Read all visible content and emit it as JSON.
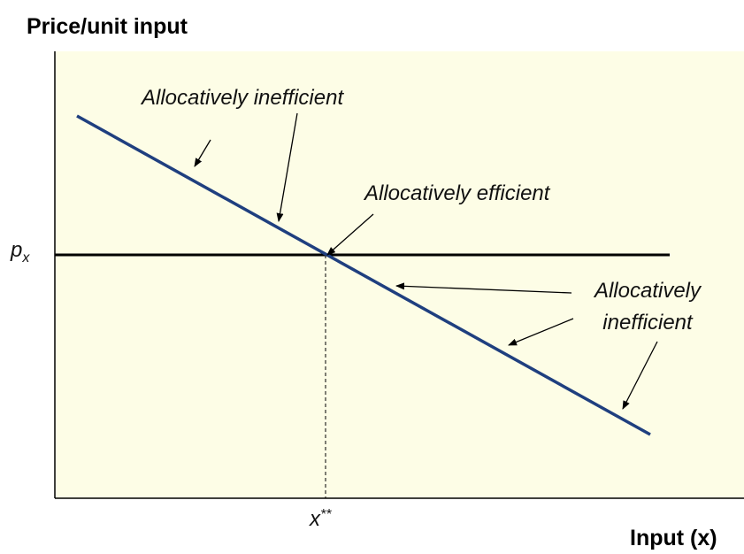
{
  "title": "Price/unit input",
  "x_axis_label": "Input (x)",
  "y_marker": {
    "label": "p",
    "subscript": "x"
  },
  "x_marker": {
    "label": "x",
    "superscript": "**"
  },
  "annotations": {
    "top_inefficient": "Allocatively inefficient",
    "efficient": "Allocatively efficient",
    "right_inefficient": [
      "Allocatively",
      "inefficient"
    ]
  }
}
